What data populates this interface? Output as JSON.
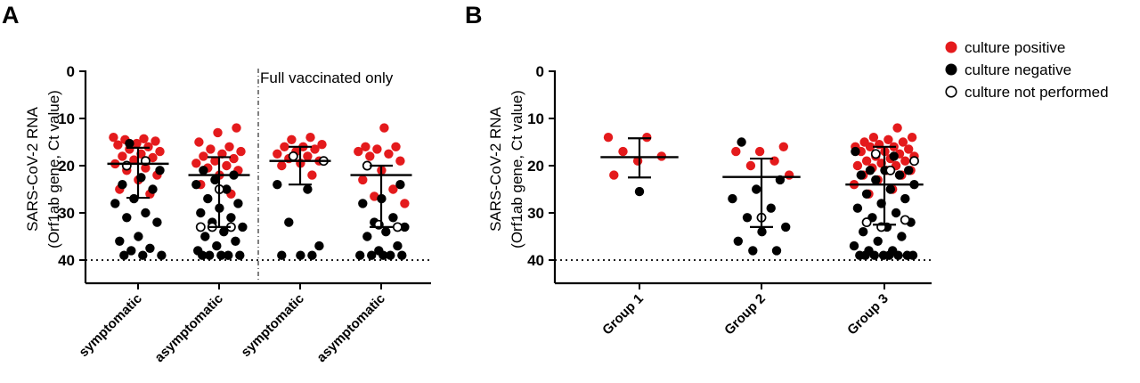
{
  "chart_data": [
    {
      "panel_label": "A",
      "type": "scatter",
      "ylabel_line1": "SARS-CoV-2 RNA",
      "ylabel_line2": "(Orf1ab gene, Ct value)",
      "ylim": [
        0,
        45
      ],
      "y_inverted": true,
      "yticks": [
        "0",
        "10",
        "20",
        "30",
        "40"
      ],
      "ytick_values": [
        0,
        10,
        20,
        30,
        40
      ],
      "categories": [
        "symptomatic",
        "asymptomatic",
        "symptomatic",
        "asymptomatic"
      ],
      "threshold": 40,
      "divider_after_index": 1,
      "section_label": "Full vaccinated only",
      "series": [
        {
          "name": "culture positive",
          "color": "#e41a1c",
          "points": [
            [
              0,
              14
            ],
            [
              0,
              14.3
            ],
            [
              0,
              14.5
            ],
            [
              0,
              14.8
            ],
            [
              0,
              15.3
            ],
            [
              0,
              15.6
            ],
            [
              0,
              16
            ],
            [
              0,
              16.5
            ],
            [
              0,
              17
            ],
            [
              0,
              17.5
            ],
            [
              0,
              18
            ],
            [
              0,
              18.3
            ],
            [
              0,
              18.8
            ],
            [
              0,
              19.6
            ],
            [
              0,
              20.5
            ],
            [
              0,
              21
            ],
            [
              0,
              22
            ],
            [
              0,
              23
            ],
            [
              0,
              25
            ],
            [
              0,
              26
            ],
            [
              1,
              12
            ],
            [
              1,
              13
            ],
            [
              1,
              15
            ],
            [
              1,
              16
            ],
            [
              1,
              16.5
            ],
            [
              1,
              17
            ],
            [
              1,
              17.5
            ],
            [
              1,
              18
            ],
            [
              1,
              18.5
            ],
            [
              1,
              19
            ],
            [
              1,
              19.5
            ],
            [
              1,
              20
            ],
            [
              1,
              20.5
            ],
            [
              1,
              21
            ],
            [
              1,
              22
            ],
            [
              1,
              24
            ],
            [
              1,
              26
            ],
            [
              2,
              14
            ],
            [
              2,
              14.5
            ],
            [
              2,
              15.5
            ],
            [
              2,
              16
            ],
            [
              2,
              16
            ],
            [
              2,
              16.5
            ],
            [
              2,
              17
            ],
            [
              2,
              17.5
            ],
            [
              2,
              18
            ],
            [
              2,
              18.5
            ],
            [
              2,
              19
            ],
            [
              2,
              19.5
            ],
            [
              2,
              20
            ],
            [
              2,
              22
            ],
            [
              3,
              12
            ],
            [
              3,
              16
            ],
            [
              3,
              16
            ],
            [
              3,
              16.5
            ],
            [
              3,
              17
            ],
            [
              3,
              17.5
            ],
            [
              3,
              18
            ],
            [
              3,
              19
            ],
            [
              3,
              21
            ],
            [
              3,
              23
            ],
            [
              3,
              25
            ],
            [
              3,
              26.5
            ],
            [
              3,
              28
            ]
          ]
        },
        {
          "name": "culture negative",
          "color": "#000000",
          "points": [
            [
              0,
              15.3
            ],
            [
              0,
              21
            ],
            [
              0,
              22.5
            ],
            [
              0,
              24
            ],
            [
              0,
              25
            ],
            [
              0,
              27
            ],
            [
              0,
              28
            ],
            [
              0,
              30
            ],
            [
              0,
              31
            ],
            [
              0,
              32
            ],
            [
              0,
              35
            ],
            [
              0,
              36
            ],
            [
              0,
              37.5
            ],
            [
              0,
              38
            ],
            [
              0,
              39
            ],
            [
              0,
              39
            ],
            [
              0,
              39
            ],
            [
              1,
              21
            ],
            [
              1,
              22
            ],
            [
              1,
              23
            ],
            [
              1,
              24
            ],
            [
              1,
              25
            ],
            [
              1,
              27
            ],
            [
              1,
              28
            ],
            [
              1,
              29
            ],
            [
              1,
              30
            ],
            [
              1,
              31
            ],
            [
              1,
              32
            ],
            [
              1,
              33
            ],
            [
              1,
              34
            ],
            [
              1,
              35
            ],
            [
              1,
              36
            ],
            [
              1,
              37
            ],
            [
              1,
              38
            ],
            [
              1,
              39
            ],
            [
              1,
              39
            ],
            [
              1,
              39
            ],
            [
              1,
              39
            ],
            [
              1,
              39
            ],
            [
              2,
              24
            ],
            [
              2,
              25
            ],
            [
              2,
              32
            ],
            [
              2,
              37
            ],
            [
              2,
              39
            ],
            [
              2,
              39
            ],
            [
              2,
              39
            ],
            [
              3,
              24
            ],
            [
              3,
              27
            ],
            [
              3,
              28
            ],
            [
              3,
              31
            ],
            [
              3,
              32
            ],
            [
              3,
              33
            ],
            [
              3,
              34
            ],
            [
              3,
              35
            ],
            [
              3,
              37
            ],
            [
              3,
              38
            ],
            [
              3,
              39
            ],
            [
              3,
              39
            ],
            [
              3,
              39
            ],
            [
              3,
              39
            ],
            [
              3,
              39
            ]
          ]
        },
        {
          "name": "culture not performed",
          "color": "#000000",
          "points": [
            [
              0,
              19
            ],
            [
              0,
              20
            ],
            [
              1,
              25
            ],
            [
              1,
              33
            ],
            [
              1,
              33
            ],
            [
              1,
              33
            ],
            [
              2,
              18
            ],
            [
              2,
              19
            ],
            [
              3,
              20
            ],
            [
              3,
              33
            ],
            [
              3,
              32.5
            ]
          ]
        }
      ],
      "stats": [
        {
          "median": 19.6,
          "q1": 16.2,
          "q3": 26.8
        },
        {
          "median": 22.0,
          "q1": 18.2,
          "q3": 33.0
        },
        {
          "median": 19.0,
          "q1": 16.0,
          "q3": 24.0
        },
        {
          "median": 22.0,
          "q1": 20.0,
          "q3": 33.0
        }
      ]
    },
    {
      "panel_label": "B",
      "type": "scatter",
      "ylabel_line1": "SARS-CoV-2 RNA",
      "ylabel_line2": "(Orf1ab gene, Ct value)",
      "ylim": [
        0,
        45
      ],
      "y_inverted": true,
      "yticks": [
        "0",
        "10",
        "20",
        "30",
        "40"
      ],
      "ytick_values": [
        0,
        10,
        20,
        30,
        40
      ],
      "categories": [
        "Group 1",
        "Group 2",
        "Group 3"
      ],
      "threshold": 40,
      "series": [
        {
          "name": "culture positive",
          "color": "#e41a1c",
          "points": [
            [
              0,
              14
            ],
            [
              0,
              14
            ],
            [
              0,
              17
            ],
            [
              0,
              18
            ],
            [
              0,
              19
            ],
            [
              0,
              22
            ],
            [
              1,
              16
            ],
            [
              1,
              17
            ],
            [
              1,
              17
            ],
            [
              1,
              19
            ],
            [
              1,
              20
            ],
            [
              1,
              22
            ],
            [
              2,
              12
            ],
            [
              2,
              14
            ],
            [
              2,
              14
            ],
            [
              2,
              14.5
            ],
            [
              2,
              15
            ],
            [
              2,
              15
            ],
            [
              2,
              15.5
            ],
            [
              2,
              16
            ],
            [
              2,
              16
            ],
            [
              2,
              16
            ],
            [
              2,
              16.5
            ],
            [
              2,
              17
            ],
            [
              2,
              17
            ],
            [
              2,
              17.5
            ],
            [
              2,
              18
            ],
            [
              2,
              18
            ],
            [
              2,
              18.5
            ],
            [
              2,
              19
            ],
            [
              2,
              19
            ],
            [
              2,
              19.5
            ],
            [
              2,
              20
            ],
            [
              2,
              20
            ],
            [
              2,
              20.5
            ],
            [
              2,
              21
            ],
            [
              2,
              21
            ],
            [
              2,
              22
            ],
            [
              2,
              22
            ],
            [
              2,
              23
            ],
            [
              2,
              24
            ],
            [
              2,
              25
            ],
            [
              2,
              26
            ]
          ]
        },
        {
          "name": "culture negative",
          "color": "#000000",
          "points": [
            [
              0,
              25.5
            ],
            [
              1,
              15
            ],
            [
              1,
              23
            ],
            [
              1,
              25
            ],
            [
              1,
              27
            ],
            [
              1,
              29
            ],
            [
              1,
              31
            ],
            [
              1,
              33
            ],
            [
              1,
              34
            ],
            [
              1,
              36
            ],
            [
              1,
              38
            ],
            [
              1,
              38
            ],
            [
              2,
              17
            ],
            [
              2,
              18
            ],
            [
              2,
              21
            ],
            [
              2,
              21
            ],
            [
              2,
              21
            ],
            [
              2,
              22
            ],
            [
              2,
              22
            ],
            [
              2,
              23
            ],
            [
              2,
              24
            ],
            [
              2,
              25
            ],
            [
              2,
              26
            ],
            [
              2,
              27
            ],
            [
              2,
              28
            ],
            [
              2,
              29
            ],
            [
              2,
              30
            ],
            [
              2,
              31
            ],
            [
              2,
              32
            ],
            [
              2,
              33
            ],
            [
              2,
              34
            ],
            [
              2,
              35
            ],
            [
              2,
              36
            ],
            [
              2,
              37
            ],
            [
              2,
              38
            ],
            [
              2,
              38
            ],
            [
              2,
              39
            ],
            [
              2,
              39
            ],
            [
              2,
              39
            ],
            [
              2,
              39
            ],
            [
              2,
              39
            ],
            [
              2,
              39
            ],
            [
              2,
              39
            ],
            [
              2,
              39
            ]
          ]
        },
        {
          "name": "culture not performed",
          "color": "#000000",
          "points": [
            [
              1,
              31
            ],
            [
              2,
              17.5
            ],
            [
              2,
              19
            ],
            [
              2,
              21
            ],
            [
              2,
              32
            ],
            [
              2,
              31.5
            ],
            [
              2,
              33
            ]
          ]
        }
      ],
      "stats": [
        {
          "median": 18.2,
          "q1": 14.2,
          "q3": 22.5
        },
        {
          "median": 22.4,
          "q1": 18.5,
          "q3": 33.0
        },
        {
          "median": 24.0,
          "q1": 16.0,
          "q3": 32.5
        }
      ]
    }
  ],
  "legend": {
    "items": [
      {
        "label": "culture positive",
        "style": "filled-red"
      },
      {
        "label": "culture negative",
        "style": "filled-black"
      },
      {
        "label": "culture not performed",
        "style": "open-black"
      }
    ]
  }
}
